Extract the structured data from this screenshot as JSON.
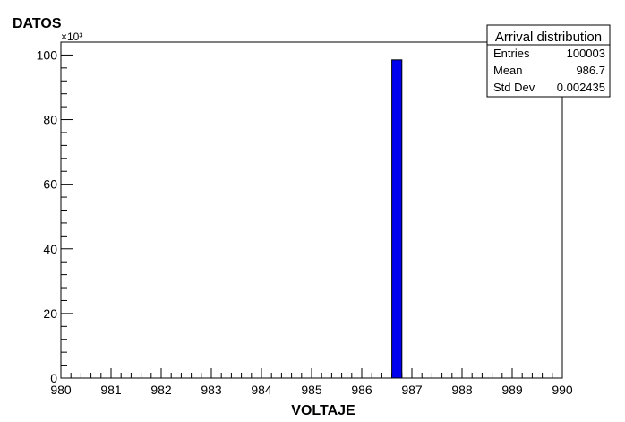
{
  "chart_data": {
    "type": "bar",
    "title": "",
    "ylabel": "DATOS",
    "xlabel": "VOLTAJE",
    "y_multiplier": "×10³",
    "x_range": [
      980,
      990
    ],
    "y_range": [
      0,
      104
    ],
    "x_ticks": [
      "980",
      "981",
      "982",
      "983",
      "984",
      "985",
      "986",
      "987",
      "988",
      "989",
      "990"
    ],
    "y_ticks": [
      "0",
      "20",
      "40",
      "60",
      "80",
      "100"
    ],
    "bins": [
      {
        "x0": 986.6,
        "x1": 986.8,
        "value": 98.5
      }
    ],
    "bar_color": "#0000ee",
    "grid": false,
    "stats_box": {
      "title": "Arrival distribution",
      "rows": [
        {
          "label": "Entries",
          "value": "100003"
        },
        {
          "label": "Mean",
          "value": "986.7"
        },
        {
          "label": "Std Dev",
          "value": "0.002435"
        }
      ],
      "placement": "top-right"
    }
  }
}
